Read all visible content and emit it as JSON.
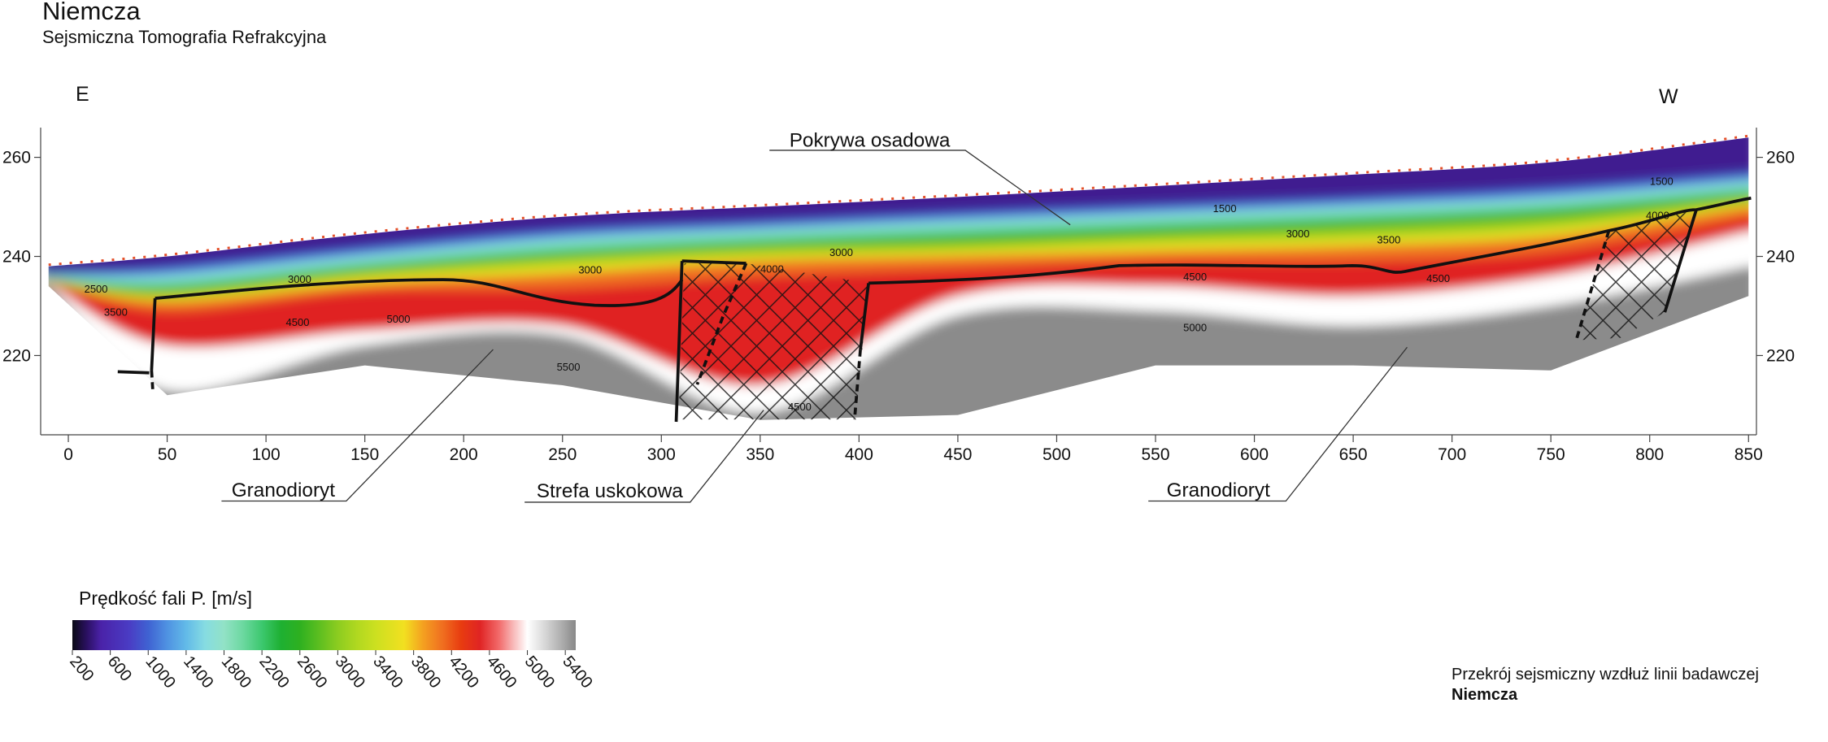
{
  "chart_data": {
    "type": "tomography",
    "title": "Niemcza",
    "subtitle": "Sejsmiczna Tomografia Refrakcyjna",
    "direction_left": "E",
    "direction_right": "W",
    "xlim": [
      -14,
      854
    ],
    "xticks": [
      0,
      50,
      100,
      150,
      200,
      250,
      300,
      350,
      400,
      450,
      500,
      550,
      600,
      650,
      700,
      750,
      800,
      850
    ],
    "ylim": [
      204,
      266
    ],
    "yticks": [
      220,
      240,
      260
    ],
    "y2lim": [
      204,
      266
    ],
    "y2ticks": [
      220,
      240,
      260
    ],
    "x": [
      -10,
      50,
      150,
      250,
      350,
      450,
      550,
      650,
      750,
      850
    ],
    "surface": [
      238,
      240,
      244.5,
      248,
      250,
      252,
      254.2,
      256.5,
      259,
      264
    ],
    "bands": [
      {
        "velocity": 450,
        "bottom": [
          236.8,
          238,
          242,
          245.5,
          247.2,
          249,
          250.5,
          252,
          254,
          257
        ]
      },
      {
        "velocity": 1000,
        "bottom": [
          236.2,
          236.5,
          240.5,
          244,
          245.8,
          247.5,
          249,
          250.5,
          252.3,
          255.5
        ]
      },
      {
        "velocity": 1600,
        "bottom": [
          235.8,
          235,
          239,
          242.5,
          244.5,
          246,
          247.5,
          249,
          250.8,
          254
        ]
      },
      {
        "velocity": 2000,
        "bottom": [
          235.5,
          234,
          238,
          241,
          243,
          244.5,
          246,
          247.5,
          249.5,
          253
        ]
      },
      {
        "velocity": 2500,
        "bottom": [
          235.2,
          233,
          237,
          240,
          242,
          243,
          244.5,
          246,
          248,
          252
        ]
      },
      {
        "velocity": 3000,
        "bottom": [
          235,
          232,
          236,
          238.5,
          240.5,
          241.5,
          243,
          244,
          246,
          251
        ]
      },
      {
        "velocity": 3600,
        "bottom": [
          234.8,
          231,
          234.5,
          236.5,
          239,
          240,
          241,
          242,
          244,
          250
        ]
      },
      {
        "velocity": 4100,
        "bottom": [
          234.6,
          229,
          233,
          233.5,
          236,
          237.5,
          239,
          239,
          241,
          248
        ]
      },
      {
        "velocity": 4500,
        "bottom": [
          234.4,
          222,
          225,
          226,
          214,
          232,
          234,
          232,
          236,
          245
        ]
      },
      {
        "velocity": 5000,
        "bottom": [
          234.2,
          213,
          222,
          224,
          208.5,
          228,
          229,
          226,
          230,
          238
        ]
      },
      {
        "velocity": 5500,
        "bottom": [
          234,
          212,
          218,
          214,
          207,
          208,
          218,
          218,
          217,
          232
        ]
      }
    ],
    "contour_labels": [
      {
        "value": 2500,
        "x": 14,
        "y": 233.4
      },
      {
        "value": 3500,
        "x": 24,
        "y": 228.7
      },
      {
        "value": 3000,
        "x": 117,
        "y": 235.3
      },
      {
        "value": 4500,
        "x": 116,
        "y": 226.6
      },
      {
        "value": 5000,
        "x": 167,
        "y": 227.3
      },
      {
        "value": 5500,
        "x": 253,
        "y": 217.6
      },
      {
        "value": 3000,
        "x": 264,
        "y": 237.2
      },
      {
        "value": 4000,
        "x": 356,
        "y": 237.4
      },
      {
        "value": 3000,
        "x": 391,
        "y": 240.7
      },
      {
        "value": 4500,
        "x": 370,
        "y": 209.6
      },
      {
        "value": 1500,
        "x": 585,
        "y": 249.6
      },
      {
        "value": 3000,
        "x": 622,
        "y": 244.5
      },
      {
        "value": 3500,
        "x": 668,
        "y": 243.3
      },
      {
        "value": 4500,
        "x": 570,
        "y": 235.8
      },
      {
        "value": 4500,
        "x": 693,
        "y": 235.5
      },
      {
        "value": 5000,
        "x": 570,
        "y": 225.6
      },
      {
        "value": 1500,
        "x": 806,
        "y": 255.1
      },
      {
        "value": 4000,
        "x": 804,
        "y": 248.2
      }
    ],
    "annotations": [
      "Pokrywa osadowa",
      "Granodioryt",
      "Strefa uskokowa",
      "Granodioryt"
    ],
    "colorbar": {
      "title": "Prędkość fali P. [m/s]",
      "lim": [
        200,
        5510
      ],
      "ticks": [
        200,
        600,
        1000,
        1400,
        1800,
        2200,
        2600,
        3000,
        3400,
        3800,
        4200,
        4600,
        5000,
        5400
      ],
      "colorscale": [
        [
          200,
          "#0a0a14"
        ],
        [
          350,
          "#2a1060"
        ],
        [
          500,
          "#4a22a8"
        ],
        [
          800,
          "#4a3cc4"
        ],
        [
          1000,
          "#3f62d2"
        ],
        [
          1200,
          "#4f92e2"
        ],
        [
          1400,
          "#62bae8"
        ],
        [
          1600,
          "#86dce2"
        ],
        [
          1800,
          "#92e2c6"
        ],
        [
          2000,
          "#6cd8a0"
        ],
        [
          2200,
          "#3cc86e"
        ],
        [
          2400,
          "#1eb032"
        ],
        [
          2600,
          "#2eb020"
        ],
        [
          2800,
          "#5cbe20"
        ],
        [
          3000,
          "#8ccc20"
        ],
        [
          3200,
          "#b0d820"
        ],
        [
          3400,
          "#cce020"
        ],
        [
          3700,
          "#f2e020"
        ],
        [
          3900,
          "#f4a020"
        ],
        [
          4100,
          "#f07020"
        ],
        [
          4300,
          "#e83c10"
        ],
        [
          4500,
          "#e02424"
        ],
        [
          4700,
          "#f26a6a"
        ],
        [
          4850,
          "#f8b8b8"
        ],
        [
          5000,
          "#ffffff"
        ],
        [
          5200,
          "#d4d4d4"
        ],
        [
          5400,
          "#a4a4a4"
        ],
        [
          5510,
          "#888888"
        ]
      ]
    },
    "caption": "Przekrój sejsmiczny wzdłuż linii badawczej",
    "caption_name": "Niemcza"
  }
}
